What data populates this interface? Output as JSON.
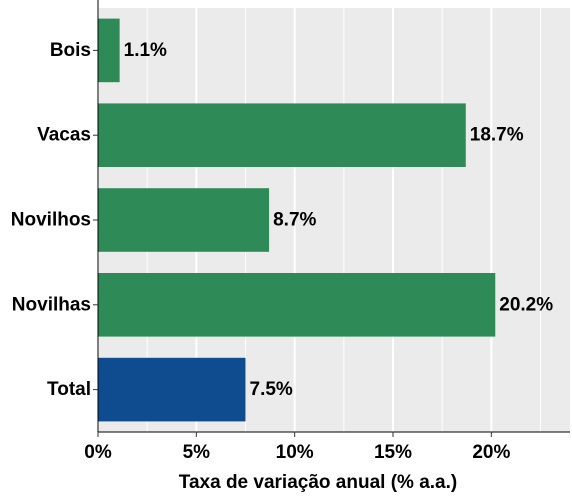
{
  "chart_data": {
    "type": "bar",
    "orientation": "horizontal",
    "categories": [
      "Bois",
      "Vacas",
      "Novilhos",
      "Novilhas",
      "Total"
    ],
    "values": [
      1.1,
      18.7,
      8.7,
      20.2,
      7.5
    ],
    "value_labels": [
      "1.1%",
      "18.7%",
      "8.7%",
      "20.2%",
      "7.5%"
    ],
    "bar_colors": [
      "#2e8b57",
      "#2e8b57",
      "#2e8b57",
      "#2e8b57",
      "#0f4c8f"
    ],
    "xlabel": "Taxa de variação anual (% a.a.)",
    "xlim": [
      0,
      24
    ],
    "x_ticks": [
      0,
      5,
      10,
      15,
      20
    ],
    "x_tick_labels": [
      "0%",
      "5%",
      "10%",
      "15%",
      "20%"
    ],
    "grid": true,
    "panel_color": "#ebebeb",
    "grid_color": "#ffffff"
  }
}
